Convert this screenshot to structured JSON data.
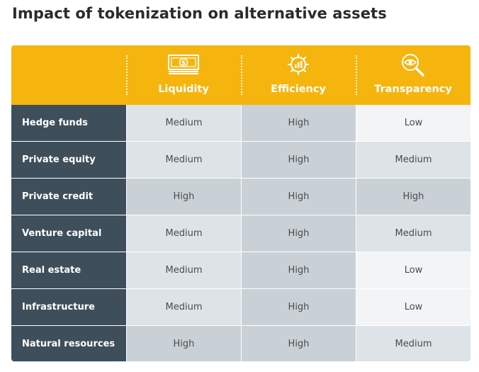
{
  "title": "Impact of tokenization on alternative assets",
  "chart_data": {
    "type": "table",
    "columns": [
      {
        "label": "Liquidity",
        "icon": "banknote-icon"
      },
      {
        "label": "Efficiency",
        "icon": "gear-chart-icon"
      },
      {
        "label": "Transparency",
        "icon": "eye-magnifier-icon"
      }
    ],
    "rows": [
      {
        "label": "Hedge funds",
        "values": [
          "Medium",
          "High",
          "Low"
        ]
      },
      {
        "label": "Private equity",
        "values": [
          "Medium",
          "High",
          "Medium"
        ]
      },
      {
        "label": "Private credit",
        "values": [
          "High",
          "High",
          "High"
        ]
      },
      {
        "label": "Venture capital",
        "values": [
          "Medium",
          "High",
          "Medium"
        ]
      },
      {
        "label": "Real estate",
        "values": [
          "Medium",
          "High",
          "Low"
        ]
      },
      {
        "label": "Infrastructure",
        "values": [
          "Medium",
          "High",
          "Low"
        ]
      },
      {
        "label": "Natural resources",
        "values": [
          "High",
          "High",
          "Medium"
        ]
      }
    ]
  },
  "colors": {
    "header": "#f5b50e",
    "row_label": "#3e4f5b",
    "high": "#c9d1d6",
    "medium": "#dde3e6",
    "low": "#f2f4f5"
  }
}
